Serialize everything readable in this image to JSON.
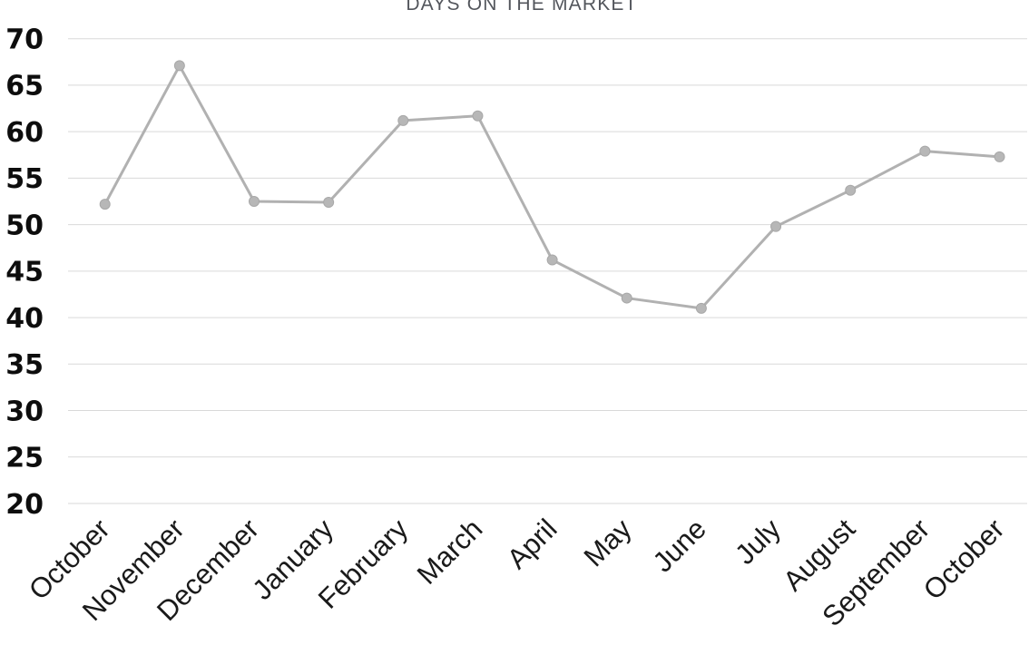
{
  "chart_data": {
    "type": "line",
    "title": "DAYS ON THE MARKET",
    "categories": [
      "October",
      "November",
      "December",
      "January",
      "February",
      "March",
      "April",
      "May",
      "June",
      "July",
      "August",
      "September",
      "October"
    ],
    "series": [
      {
        "name": "Days on the Market",
        "values": [
          52.2,
          67.1,
          52.5,
          52.4,
          61.2,
          61.7,
          46.2,
          42.1,
          41.0,
          49.8,
          53.7,
          57.9,
          57.3
        ]
      }
    ],
    "xlabel": "",
    "ylabel": "",
    "ylim": [
      20,
      70
    ],
    "yticks": [
      70,
      65,
      60,
      55,
      50,
      45,
      40,
      35,
      30,
      25,
      20
    ],
    "x_label_rotation_deg": 45,
    "grid": "horizontal",
    "legend": "none",
    "markers": "circle",
    "colors": {
      "line": "#b1b1b1",
      "marker_fill": "#b7b7b7",
      "marker_stroke": "#a8a8a8",
      "gridline": "#d9d9d9",
      "title_text": "#53565c",
      "y_tick_text": "#0d0d0d",
      "x_tick_text": "#1a1a1a",
      "background": "#ffffff"
    }
  }
}
